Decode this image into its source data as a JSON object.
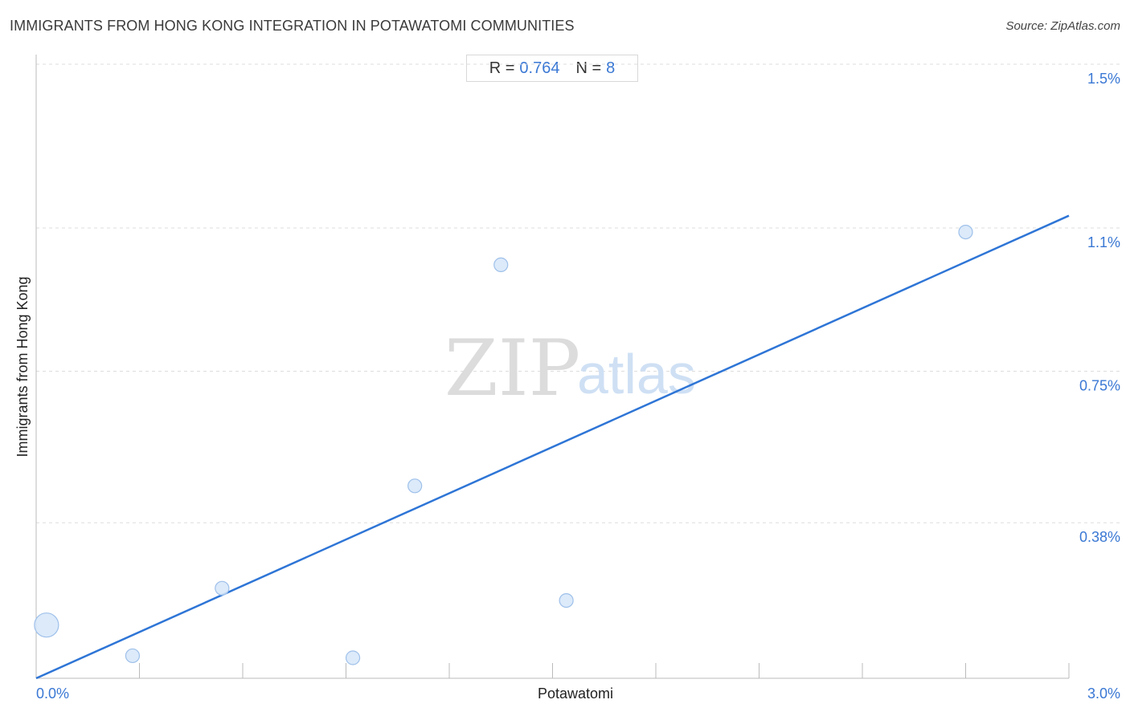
{
  "header": {
    "title": "IMMIGRANTS FROM HONG KONG INTEGRATION IN POTAWATOMI COMMUNITIES",
    "source": "Source: ZipAtlas.com"
  },
  "stats": {
    "r_label": "R =",
    "r_value": "0.764",
    "n_label": "N =",
    "n_value": "8"
  },
  "watermark": {
    "zip": "ZIP",
    "atlas": "atlas"
  },
  "colors": {
    "accent": "#2e75d6",
    "point_fill": "#d6e6f9",
    "point_stroke": "#9ec0ea",
    "grid": "#dddddd"
  },
  "chart_data": {
    "type": "scatter",
    "xlabel": "Potawatomi",
    "ylabel": "Immigrants from Hong Kong",
    "xlim": [
      0,
      3.0
    ],
    "ylim": [
      0,
      1.5
    ],
    "x_tick_labels": [
      "0.0%",
      "3.0%"
    ],
    "y_ticks": [
      {
        "value": 1.5,
        "label": "1.5%"
      },
      {
        "value": 1.1,
        "label": "1.1%"
      },
      {
        "value": 0.75,
        "label": "0.75%"
      },
      {
        "value": 0.38,
        "label": "0.38%"
      }
    ],
    "grid": true,
    "points": [
      {
        "x": 0.03,
        "y": 0.13,
        "size": "large"
      },
      {
        "x": 0.28,
        "y": 0.055,
        "size": "small"
      },
      {
        "x": 0.54,
        "y": 0.22,
        "size": "small"
      },
      {
        "x": 0.92,
        "y": 0.05,
        "size": "small"
      },
      {
        "x": 1.1,
        "y": 0.47,
        "size": "small"
      },
      {
        "x": 1.35,
        "y": 1.01,
        "size": "small"
      },
      {
        "x": 1.54,
        "y": 0.19,
        "size": "small"
      },
      {
        "x": 2.7,
        "y": 1.09,
        "size": "small"
      }
    ],
    "trendline": {
      "x": [
        0,
        3.0
      ],
      "y": [
        0,
        1.13
      ]
    }
  }
}
